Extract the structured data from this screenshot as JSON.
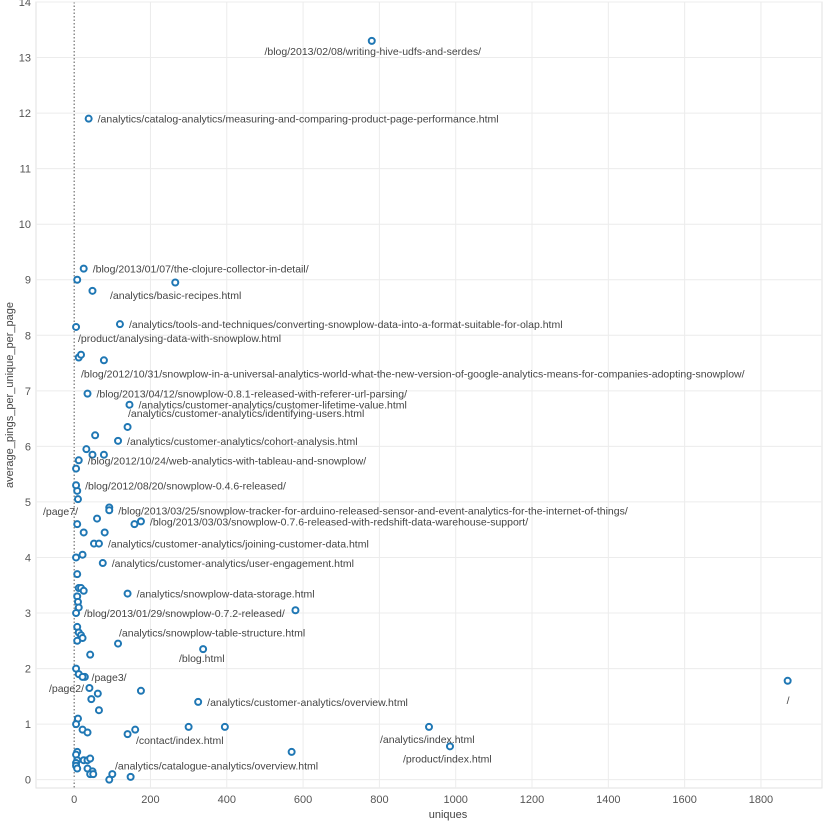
{
  "chart_data": {
    "type": "scatter",
    "title": "",
    "xlabel": "uniques",
    "ylabel": "average_pings_per_unique_per_page",
    "xlim": [
      -100,
      1960
    ],
    "ylim": [
      -0.15,
      14
    ],
    "xticks": [
      0,
      200,
      400,
      600,
      800,
      1000,
      1200,
      1400,
      1600,
      1800
    ],
    "yticks": [
      0,
      1,
      2,
      3,
      4,
      5,
      6,
      7,
      8,
      9,
      10,
      11,
      12,
      13,
      14
    ],
    "grid": true,
    "color": "#1f77b4",
    "labeled_points": [
      {
        "x": 780,
        "y": 13.3,
        "label": "/blog/2013/02/08/writing-hive-udfs-and-serdes/"
      },
      {
        "x": 38,
        "y": 11.9,
        "label": "/analytics/catalog-analytics/measuring-and-comparing-product-page-performance.html"
      },
      {
        "x": 25,
        "y": 9.2,
        "label": "/blog/2013/01/07/the-clojure-collector-in-detail/"
      },
      {
        "x": 48,
        "y": 8.8,
        "label": "/analytics/basic-recipes.html"
      },
      {
        "x": 120,
        "y": 8.2,
        "label": "/analytics/tools-and-techniques/converting-snowplow-data-into-a-format-suitable-for-olap.html"
      },
      {
        "x": 5,
        "y": 8.15,
        "label": "/product/analysing-data-with-snowplow.html"
      },
      {
        "x": 78,
        "y": 7.55,
        "label": "/blog/2012/10/31/snowplow-in-a-universal-analytics-world-what-the-new-version-of-google-analytics-means-for-companies-adopting-snowplow/"
      },
      {
        "x": 35,
        "y": 6.95,
        "label": "/blog/2013/04/12/snowplow-0.8.1-released-with-referer-url-parsing/"
      },
      {
        "x": 145,
        "y": 6.75,
        "label": "/analytics/customer-analytics/customer-lifetime-value.html"
      },
      {
        "x": 140,
        "y": 6.35,
        "label": "/analytics/customer-analytics/identifying-users.html"
      },
      {
        "x": 115,
        "y": 6.1,
        "label": "/analytics/customer-analytics/cohort-analysis.html"
      },
      {
        "x": 12,
        "y": 5.75,
        "label": "/blog/2012/10/24/web-analytics-with-tableau-and-snowplow/"
      },
      {
        "x": 5,
        "y": 5.3,
        "label": "/blog/2012/08/20/snowplow-0.4.6-released/"
      },
      {
        "x": 8,
        "y": 4.6,
        "label": "/page7/"
      },
      {
        "x": 92,
        "y": 4.85,
        "label": "/blog/2013/03/25/snowplow-tracker-for-arduino-released-sensor-and-event-analytics-for-the-internet-of-things/"
      },
      {
        "x": 175,
        "y": 4.65,
        "label": "/blog/2013/03/03/snowplow-0.7.6-released-with-redshift-data-warehouse-support/"
      },
      {
        "x": 65,
        "y": 4.25,
        "label": "/analytics/customer-analytics/joining-customer-data.html"
      },
      {
        "x": 75,
        "y": 3.9,
        "label": "/analytics/customer-analytics/user-engagement.html"
      },
      {
        "x": 140,
        "y": 3.35,
        "label": "/analytics/snowplow-data-storage.html"
      },
      {
        "x": 5,
        "y": 3.0,
        "label": "/blog/2013/01/29/snowplow-0.7.2-released/"
      },
      {
        "x": 115,
        "y": 2.45,
        "label": "/analytics/snowplow-table-structure.html"
      },
      {
        "x": 338,
        "y": 2.35,
        "label": "/blog.html"
      },
      {
        "x": 22,
        "y": 1.85,
        "label": "/page3/"
      },
      {
        "x": 40,
        "y": 1.65,
        "label": "/page2/"
      },
      {
        "x": 325,
        "y": 1.4,
        "label": "/analytics/customer-analytics/overview.html"
      },
      {
        "x": 1870,
        "y": 1.78,
        "label": "/"
      },
      {
        "x": 140,
        "y": 0.82,
        "label": "/contact/index.html"
      },
      {
        "x": 930,
        "y": 0.95,
        "label": "/analytics/index.html"
      },
      {
        "x": 985,
        "y": 0.6,
        "label": "/product/index.html"
      },
      {
        "x": 42,
        "y": 0.38,
        "label": "/analytics/catalogue-analytics/overview.html"
      }
    ],
    "unlabeled_points": [
      [
        8,
        9.0
      ],
      [
        265,
        8.95
      ],
      [
        12,
        7.6
      ],
      [
        18,
        7.65
      ],
      [
        55,
        6.2
      ],
      [
        32,
        5.95
      ],
      [
        48,
        5.85
      ],
      [
        78,
        5.85
      ],
      [
        5,
        5.6
      ],
      [
        8,
        5.2
      ],
      [
        10,
        5.05
      ],
      [
        92,
        4.9
      ],
      [
        60,
        4.7
      ],
      [
        158,
        4.6
      ],
      [
        80,
        4.45
      ],
      [
        25,
        4.45
      ],
      [
        52,
        4.25
      ],
      [
        5,
        4.0
      ],
      [
        22,
        4.05
      ],
      [
        8,
        3.7
      ],
      [
        12,
        3.45
      ],
      [
        18,
        3.45
      ],
      [
        25,
        3.4
      ],
      [
        8,
        3.3
      ],
      [
        10,
        3.2
      ],
      [
        12,
        3.1
      ],
      [
        580,
        3.05
      ],
      [
        8,
        2.75
      ],
      [
        12,
        2.65
      ],
      [
        18,
        2.6
      ],
      [
        22,
        2.55
      ],
      [
        8,
        2.5
      ],
      [
        42,
        2.25
      ],
      [
        5,
        2.0
      ],
      [
        12,
        1.9
      ],
      [
        28,
        1.85
      ],
      [
        175,
        1.6
      ],
      [
        62,
        1.55
      ],
      [
        45,
        1.45
      ],
      [
        65,
        1.25
      ],
      [
        10,
        1.1
      ],
      [
        5,
        1.0
      ],
      [
        22,
        0.9
      ],
      [
        35,
        0.85
      ],
      [
        300,
        0.95
      ],
      [
        395,
        0.95
      ],
      [
        160,
        0.9
      ],
      [
        570,
        0.5
      ],
      [
        8,
        0.5
      ],
      [
        5,
        0.45
      ],
      [
        8,
        0.35
      ],
      [
        25,
        0.35
      ],
      [
        35,
        0.35
      ],
      [
        5,
        0.3
      ],
      [
        5,
        0.25
      ],
      [
        8,
        0.2
      ],
      [
        35,
        0.2
      ],
      [
        48,
        0.15
      ],
      [
        42,
        0.1
      ],
      [
        50,
        0.1
      ],
      [
        100,
        0.1
      ],
      [
        148,
        0.05
      ],
      [
        92,
        0.0
      ]
    ]
  }
}
